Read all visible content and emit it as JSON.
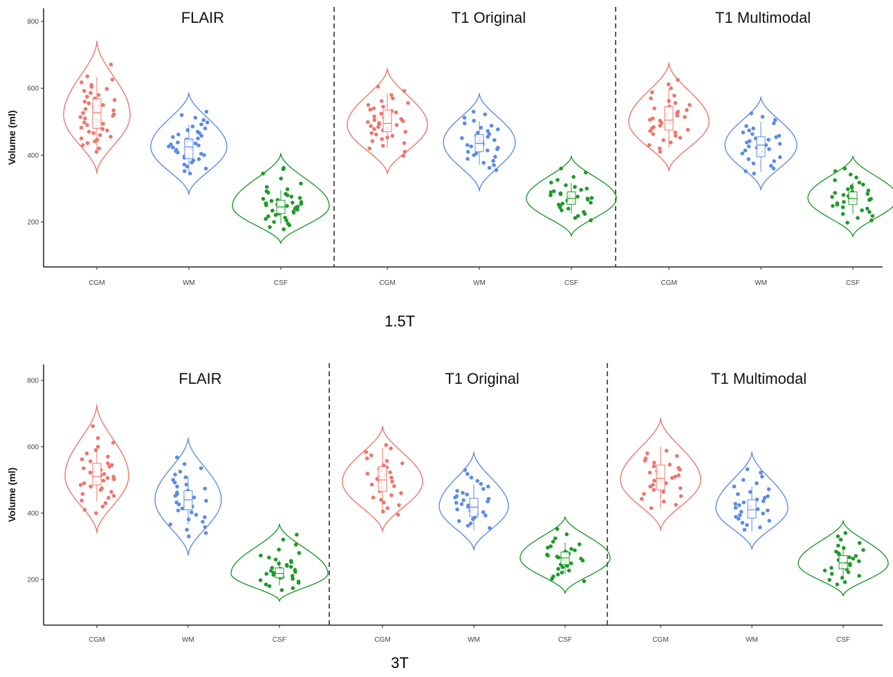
{
  "figure": {
    "captions": [
      "1.5T",
      "3T"
    ]
  },
  "chart_data": [
    {
      "type": "violin",
      "field_strength": "1.5T",
      "ylabel": "Volume (ml)",
      "yticks": [
        200,
        400,
        600,
        800
      ],
      "ylim": [
        110,
        825
      ],
      "categories": [
        "CGM",
        "WM",
        "CSF"
      ],
      "category_colors": {
        "CGM": "#F0756A",
        "WM": "#5C8CE6",
        "CSF": "#1F9A2A"
      },
      "panels": [
        {
          "title": "FLAIR",
          "groups": [
            {
              "category": "CGM",
              "min": 345,
              "max": 742,
              "mode": 520,
              "width": 48,
              "q1": 480,
              "median": 527,
              "q3": 568,
              "values": [
                410,
                420,
                430,
                436,
                441,
                446,
                450,
                455,
                460,
                466,
                470,
                474,
                478,
                482,
                486,
                490,
                494,
                498,
                502,
                506,
                510,
                514,
                518,
                522,
                526,
                530,
                534,
                538,
                542,
                546,
                550,
                555,
                560,
                565,
                570,
                575,
                580,
                586,
                592,
                598,
                604,
                610,
                618,
                626,
                636,
                671
              ]
            },
            {
              "category": "WM",
              "min": 282,
              "max": 588,
              "mode": 425,
              "width": 55,
              "q1": 390,
              "median": 425,
              "q3": 448,
              "values": [
                345,
                352,
                360,
                366,
                372,
                378,
                384,
                388,
                392,
                396,
                400,
                404,
                408,
                412,
                416,
                420,
                423,
                426,
                429,
                432,
                435,
                438,
                441,
                444,
                447,
                450,
                454,
                458,
                462,
                466,
                470,
                475,
                480,
                486,
                492,
                498,
                505,
                512,
                520,
                530
              ]
            },
            {
              "category": "CSF",
              "min": 135,
              "max": 406,
              "mode": 248,
              "width": 70,
              "q1": 225,
              "median": 245,
              "q3": 265,
              "values": [
                178,
                185,
                190,
                195,
                200,
                205,
                209,
                213,
                217,
                221,
                225,
                228,
                231,
                234,
                237,
                240,
                242,
                244,
                246,
                248,
                250,
                252,
                254,
                256,
                258,
                260,
                263,
                266,
                269,
                272,
                276,
                280,
                284,
                288,
                292,
                298,
                305,
                315,
                330,
                345,
                358,
                362
              ]
            }
          ]
        },
        {
          "title": "T1 Original",
          "groups": [
            {
              "category": "CGM",
              "min": 343,
              "max": 660,
              "mode": 490,
              "width": 58,
              "q1": 470,
              "median": 495,
              "q3": 535,
              "values": [
                398,
                410,
                420,
                428,
                436,
                442,
                448,
                453,
                458,
                462,
                466,
                470,
                474,
                478,
                481,
                484,
                487,
                490,
                493,
                496,
                499,
                502,
                505,
                508,
                512,
                516,
                520,
                524,
                528,
                532,
                536,
                540,
                545,
                550,
                556,
                562,
                570,
                580,
                592,
                605
              ]
            },
            {
              "category": "WM",
              "min": 292,
              "max": 585,
              "mode": 438,
              "width": 52,
              "q1": 410,
              "median": 435,
              "q3": 462,
              "values": [
                355,
                362,
                370,
                377,
                383,
                389,
                395,
                400,
                405,
                410,
                414,
                418,
                422,
                426,
                430,
                433,
                436,
                439,
                442,
                445,
                448,
                451,
                455,
                459,
                463,
                467,
                472,
                477,
                482,
                488,
                495,
                503,
                512,
                522,
                530
              ]
            },
            {
              "category": "CSF",
              "min": 157,
              "max": 398,
              "mode": 270,
              "width": 65,
              "q1": 253,
              "median": 270,
              "q3": 290,
              "values": [
                205,
                212,
                218,
                224,
                230,
                235,
                240,
                244,
                248,
                252,
                255,
                258,
                261,
                264,
                267,
                270,
                272,
                274,
                276,
                278,
                280,
                283,
                286,
                289,
                292,
                296,
                300,
                305,
                310,
                318,
                326,
                335,
                348,
                360
              ]
            }
          ]
        },
        {
          "title": "T1 Multimodal",
          "groups": [
            {
              "category": "CGM",
              "min": 352,
              "max": 677,
              "mode": 500,
              "width": 58,
              "q1": 475,
              "median": 505,
              "q3": 545,
              "values": [
                410,
                420,
                430,
                438,
                445,
                452,
                458,
                463,
                468,
                472,
                476,
                480,
                484,
                488,
                492,
                496,
                500,
                503,
                506,
                510,
                514,
                518,
                522,
                526,
                530,
                535,
                540,
                545,
                550,
                556,
                562,
                570,
                578,
                588,
                600,
                612,
                625
              ]
            },
            {
              "category": "WM",
              "min": 295,
              "max": 575,
              "mode": 430,
              "width": 52,
              "q1": 395,
              "median": 430,
              "q3": 455,
              "values": [
                345,
                352,
                360,
                368,
                375,
                382,
                388,
                394,
                400,
                405,
                410,
                414,
                418,
                422,
                426,
                430,
                434,
                438,
                442,
                446,
                450,
                454,
                458,
                463,
                468,
                474,
                480,
                487,
                495,
                505,
                515,
                525
              ]
            },
            {
              "category": "CSF",
              "min": 155,
              "max": 398,
              "mode": 272,
              "width": 65,
              "q1": 252,
              "median": 270,
              "q3": 290,
              "values": [
                198,
                205,
                212,
                218,
                224,
                230,
                235,
                240,
                244,
                248,
                252,
                256,
                260,
                263,
                266,
                269,
                272,
                275,
                278,
                281,
                284,
                287,
                290,
                294,
                298,
                302,
                307,
                312,
                318,
                325,
                333,
                342,
                352,
                360
              ]
            }
          ]
        }
      ]
    },
    {
      "type": "violin",
      "field_strength": "3T",
      "ylabel": "Volume (ml)",
      "yticks": [
        200,
        400,
        600,
        800
      ],
      "ylim": [
        120,
        825
      ],
      "categories": [
        "CGM",
        "WM",
        "CSF"
      ],
      "category_colors": {
        "CGM": "#F0756A",
        "WM": "#5C8CE6",
        "CSF": "#1F9A2A"
      },
      "panels": [
        {
          "title": "FLAIR",
          "groups": [
            {
              "category": "CGM",
              "min": 340,
              "max": 727,
              "mode": 512,
              "width": 46,
              "q1": 485,
              "median": 510,
              "q3": 550,
              "values": [
                400,
                410,
                420,
                430,
                438,
                446,
                452,
                458,
                464,
                470,
                475,
                480,
                485,
                490,
                494,
                498,
                502,
                506,
                510,
                514,
                518,
                522,
                526,
                530,
                535,
                540,
                545,
                550,
                556,
                562,
                570,
                580,
                590,
                600,
                612,
                626,
                662
              ]
            },
            {
              "category": "WM",
              "min": 272,
              "max": 627,
              "mode": 440,
              "width": 48,
              "q1": 410,
              "median": 440,
              "q3": 468,
              "values": [
                330,
                340,
                350,
                358,
                366,
                374,
                381,
                388,
                395,
                402,
                408,
                414,
                420,
                426,
                432,
                437,
                442,
                447,
                452,
                457,
                462,
                468,
                474,
                480,
                486,
                492,
                500,
                508,
                516,
                525,
                535,
                548,
                568
              ]
            },
            {
              "category": "CSF",
              "min": 135,
              "max": 368,
              "mode": 218,
              "width": 70,
              "q1": 205,
              "median": 218,
              "q3": 235,
              "values": [
                168,
                174,
                180,
                185,
                190,
                194,
                198,
                202,
                205,
                208,
                211,
                214,
                217,
                220,
                223,
                226,
                229,
                232,
                235,
                238,
                241,
                244,
                248,
                252,
                256,
                260,
                266,
                272,
                280,
                290,
                305,
                320,
                335
              ]
            }
          ]
        },
        {
          "title": "T1 Original",
          "groups": [
            {
              "category": "CGM",
              "min": 343,
              "max": 662,
              "mode": 495,
              "width": 58,
              "q1": 465,
              "median": 500,
              "q3": 540,
              "values": [
                395,
                405,
                415,
                424,
                432,
                440,
                447,
                454,
                460,
                466,
                471,
                476,
                481,
                486,
                491,
                495,
                499,
                503,
                507,
                511,
                515,
                519,
                523,
                528,
                533,
                538,
                544,
                550,
                557,
                565,
                574,
                584,
                595,
                605
              ]
            },
            {
              "category": "WM",
              "min": 288,
              "max": 585,
              "mode": 420,
              "width": 50,
              "q1": 390,
              "median": 418,
              "q3": 445,
              "values": [
                355,
                362,
                369,
                376,
                382,
                388,
                393,
                398,
                403,
                407,
                411,
                415,
                419,
                423,
                427,
                431,
                435,
                439,
                443,
                447,
                451,
                456,
                461,
                467,
                473,
                480,
                488,
                497,
                507,
                518,
                530
              ]
            },
            {
              "category": "CSF",
              "min": 158,
              "max": 390,
              "mode": 265,
              "width": 65,
              "q1": 245,
              "median": 265,
              "q3": 283,
              "values": [
                195,
                202,
                209,
                215,
                221,
                227,
                232,
                237,
                241,
                245,
                249,
                253,
                257,
                260,
                263,
                266,
                269,
                272,
                275,
                278,
                281,
                284,
                288,
                292,
                296,
                300,
                306,
                314,
                324,
                336,
                352
              ]
            }
          ]
        },
        {
          "title": "T1 Multimodal",
          "groups": [
            {
              "category": "CGM",
              "min": 348,
              "max": 687,
              "mode": 500,
              "width": 58,
              "q1": 470,
              "median": 505,
              "q3": 545,
              "values": [
                415,
                425,
                435,
                443,
                451,
                458,
                464,
                470,
                475,
                480,
                485,
                490,
                494,
                498,
                502,
                506,
                510,
                514,
                518,
                522,
                526,
                531,
                536,
                541,
                546,
                552,
                558,
                565,
                572,
                580,
                588
              ]
            },
            {
              "category": "WM",
              "min": 290,
              "max": 585,
              "mode": 415,
              "width": 52,
              "q1": 385,
              "median": 410,
              "q3": 440,
              "values": [
                350,
                357,
                364,
                371,
                377,
                383,
                389,
                394,
                399,
                404,
                408,
                412,
                416,
                420,
                424,
                428,
                432,
                436,
                441,
                446,
                451,
                457,
                464,
                472,
                480,
                490,
                500,
                510,
                522,
                532
              ]
            },
            {
              "category": "CSF",
              "min": 150,
              "max": 378,
              "mode": 248,
              "width": 65,
              "q1": 232,
              "median": 250,
              "q3": 272,
              "values": [
                185,
                192,
                199,
                205,
                211,
                217,
                222,
                227,
                231,
                235,
                239,
                243,
                247,
                251,
                255,
                259,
                263,
                267,
                271,
                275,
                279,
                284,
                289,
                295,
                302,
                310,
                320,
                330,
                340
              ]
            }
          ]
        }
      ]
    }
  ]
}
